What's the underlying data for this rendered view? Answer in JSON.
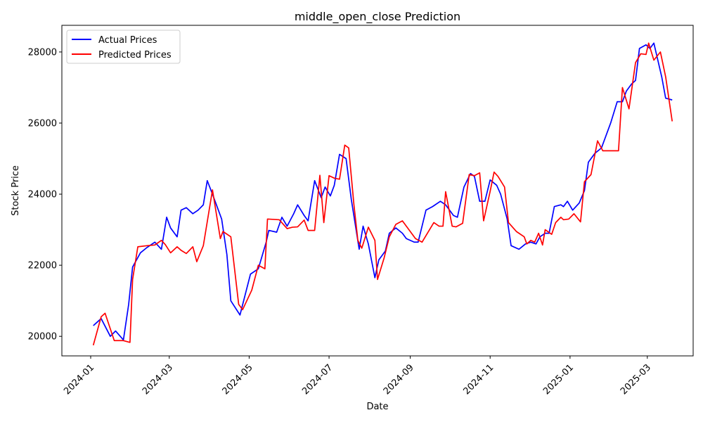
{
  "chart_data": {
    "type": "line",
    "title": "middle_open_close Prediction",
    "xlabel": "Date",
    "ylabel": "Stock Price",
    "xlim": [
      "2023-12-10",
      "2025-04-05"
    ],
    "ylim": [
      19450,
      28750
    ],
    "x_ticks": [
      {
        "date": "2024-01-01",
        "label": "2024-01"
      },
      {
        "date": "2024-03-01",
        "label": "2024-03"
      },
      {
        "date": "2024-05-01",
        "label": "2024-05"
      },
      {
        "date": "2024-07-01",
        "label": "2024-07"
      },
      {
        "date": "2024-09-01",
        "label": "2024-09"
      },
      {
        "date": "2024-11-01",
        "label": "2024-11"
      },
      {
        "date": "2025-01-01",
        "label": "2025-01"
      },
      {
        "date": "2025-03-01",
        "label": "2025-03"
      }
    ],
    "y_ticks": [
      20000,
      22000,
      24000,
      26000,
      28000
    ],
    "grid": false,
    "legend_position": "top-left",
    "series": [
      {
        "name": "Actual Prices",
        "color": "#0000ff",
        "points": [
          [
            "2024-01-03",
            20300
          ],
          [
            "2024-01-09",
            20500
          ],
          [
            "2024-01-16",
            20000
          ],
          [
            "2024-01-20",
            20150
          ],
          [
            "2024-01-26",
            19900
          ],
          [
            "2024-01-30",
            20900
          ],
          [
            "2024-02-02",
            21950
          ],
          [
            "2024-02-08",
            22350
          ],
          [
            "2024-02-13",
            22500
          ],
          [
            "2024-02-19",
            22650
          ],
          [
            "2024-02-24",
            22450
          ],
          [
            "2024-02-28",
            23350
          ],
          [
            "2024-03-02",
            23050
          ],
          [
            "2024-03-07",
            22800
          ],
          [
            "2024-03-10",
            23550
          ],
          [
            "2024-03-14",
            23620
          ],
          [
            "2024-03-19",
            23450
          ],
          [
            "2024-03-23",
            23550
          ],
          [
            "2024-03-27",
            23700
          ],
          [
            "2024-03-30",
            24380
          ],
          [
            "2024-04-03",
            24000
          ],
          [
            "2024-04-10",
            23300
          ],
          [
            "2024-04-14",
            22300
          ],
          [
            "2024-04-17",
            21000
          ],
          [
            "2024-04-24",
            20600
          ],
          [
            "2024-05-02",
            21750
          ],
          [
            "2024-05-08",
            21900
          ],
          [
            "2024-05-14",
            22650
          ],
          [
            "2024-05-16",
            22980
          ],
          [
            "2024-05-22",
            22930
          ],
          [
            "2024-05-26",
            23350
          ],
          [
            "2024-05-30",
            23100
          ],
          [
            "2024-06-04",
            23450
          ],
          [
            "2024-06-07",
            23700
          ],
          [
            "2024-06-12",
            23400
          ],
          [
            "2024-06-15",
            23250
          ],
          [
            "2024-06-20",
            24380
          ],
          [
            "2024-06-25",
            23900
          ],
          [
            "2024-06-28",
            24200
          ],
          [
            "2024-07-02",
            23950
          ],
          [
            "2024-07-05",
            24250
          ],
          [
            "2024-07-09",
            25120
          ],
          [
            "2024-07-14",
            25000
          ],
          [
            "2024-07-18",
            23850
          ],
          [
            "2024-07-24",
            22450
          ],
          [
            "2024-07-27",
            23100
          ],
          [
            "2024-07-31",
            22600
          ],
          [
            "2024-08-05",
            21650
          ],
          [
            "2024-08-08",
            22150
          ],
          [
            "2024-08-13",
            22400
          ],
          [
            "2024-08-16",
            22900
          ],
          [
            "2024-08-21",
            23050
          ],
          [
            "2024-08-26",
            22900
          ],
          [
            "2024-08-29",
            22750
          ],
          [
            "2024-09-04",
            22650
          ],
          [
            "2024-09-07",
            22650
          ],
          [
            "2024-09-13",
            23550
          ],
          [
            "2024-09-18",
            23650
          ],
          [
            "2024-09-24",
            23800
          ],
          [
            "2024-09-28",
            23700
          ],
          [
            "2024-10-04",
            23400
          ],
          [
            "2024-10-07",
            23350
          ],
          [
            "2024-10-12",
            24200
          ],
          [
            "2024-10-17",
            24580
          ],
          [
            "2024-10-20",
            24500
          ],
          [
            "2024-10-24",
            23800
          ],
          [
            "2024-10-28",
            23800
          ],
          [
            "2024-11-01",
            24400
          ],
          [
            "2024-11-06",
            24250
          ],
          [
            "2024-11-09",
            24000
          ],
          [
            "2024-11-14",
            23300
          ],
          [
            "2024-11-17",
            22550
          ],
          [
            "2024-11-23",
            22450
          ],
          [
            "2024-11-28",
            22600
          ],
          [
            "2024-12-02",
            22650
          ],
          [
            "2024-12-06",
            22600
          ],
          [
            "2024-12-09",
            22800
          ],
          [
            "2024-12-13",
            22900
          ],
          [
            "2024-12-16",
            22900
          ],
          [
            "2024-12-20",
            23650
          ],
          [
            "2024-12-25",
            23700
          ],
          [
            "2024-12-27",
            23650
          ],
          [
            "2024-12-30",
            23800
          ],
          [
            "2025-01-03",
            23550
          ],
          [
            "2025-01-08",
            23750
          ],
          [
            "2025-01-12",
            24100
          ],
          [
            "2025-01-15",
            24900
          ],
          [
            "2025-01-20",
            25150
          ],
          [
            "2025-01-25",
            25300
          ],
          [
            "2025-02-01",
            26000
          ],
          [
            "2025-02-06",
            26600
          ],
          [
            "2025-02-10",
            26600
          ],
          [
            "2025-02-13",
            26900
          ],
          [
            "2025-02-17",
            27100
          ],
          [
            "2025-02-20",
            27200
          ],
          [
            "2025-02-23",
            28100
          ],
          [
            "2025-02-28",
            28200
          ],
          [
            "2025-03-03",
            28100
          ],
          [
            "2025-03-06",
            28250
          ],
          [
            "2025-03-12",
            27300
          ],
          [
            "2025-03-15",
            26700
          ],
          [
            "2025-03-20",
            26650
          ]
        ]
      },
      {
        "name": "Predicted Prices",
        "color": "#ff0000",
        "points": [
          [
            "2024-01-03",
            19750
          ],
          [
            "2024-01-09",
            20550
          ],
          [
            "2024-01-12",
            20650
          ],
          [
            "2024-01-19",
            19880
          ],
          [
            "2024-01-23",
            19880
          ],
          [
            "2024-01-26",
            19880
          ],
          [
            "2024-01-31",
            19830
          ],
          [
            "2024-02-02",
            21600
          ],
          [
            "2024-02-06",
            22520
          ],
          [
            "2024-02-13",
            22550
          ],
          [
            "2024-02-19",
            22570
          ],
          [
            "2024-02-24",
            22700
          ],
          [
            "2024-02-27",
            22580
          ],
          [
            "2024-03-02",
            22350
          ],
          [
            "2024-03-07",
            22520
          ],
          [
            "2024-03-10",
            22420
          ],
          [
            "2024-03-14",
            22330
          ],
          [
            "2024-03-19",
            22520
          ],
          [
            "2024-03-22",
            22100
          ],
          [
            "2024-03-27",
            22550
          ],
          [
            "2024-04-03",
            24120
          ],
          [
            "2024-04-09",
            22750
          ],
          [
            "2024-04-11",
            22950
          ],
          [
            "2024-04-17",
            22800
          ],
          [
            "2024-04-23",
            20900
          ],
          [
            "2024-04-26",
            20750
          ],
          [
            "2024-05-03",
            21300
          ],
          [
            "2024-05-08",
            22000
          ],
          [
            "2024-05-13",
            21900
          ],
          [
            "2024-05-15",
            23300
          ],
          [
            "2024-05-24",
            23280
          ],
          [
            "2024-05-30",
            23030
          ],
          [
            "2024-06-03",
            23070
          ],
          [
            "2024-06-07",
            23080
          ],
          [
            "2024-06-12",
            23270
          ],
          [
            "2024-06-15",
            22980
          ],
          [
            "2024-06-20",
            22980
          ],
          [
            "2024-06-24",
            24530
          ],
          [
            "2024-06-27",
            23200
          ],
          [
            "2024-07-01",
            24520
          ],
          [
            "2024-07-05",
            24450
          ],
          [
            "2024-07-09",
            24420
          ],
          [
            "2024-07-13",
            25380
          ],
          [
            "2024-07-16",
            25300
          ],
          [
            "2024-07-20",
            23700
          ],
          [
            "2024-07-23",
            22700
          ],
          [
            "2024-07-26",
            22480
          ],
          [
            "2024-07-31",
            23070
          ],
          [
            "2024-08-05",
            22700
          ],
          [
            "2024-08-07",
            21600
          ],
          [
            "2024-08-12",
            22200
          ],
          [
            "2024-08-16",
            22800
          ],
          [
            "2024-08-21",
            23150
          ],
          [
            "2024-08-26",
            23250
          ],
          [
            "2024-09-05",
            22750
          ],
          [
            "2024-09-10",
            22650
          ],
          [
            "2024-09-19",
            23200
          ],
          [
            "2024-09-23",
            23100
          ],
          [
            "2024-09-26",
            23100
          ],
          [
            "2024-09-28",
            24070
          ],
          [
            "2024-10-03",
            23100
          ],
          [
            "2024-10-06",
            23080
          ],
          [
            "2024-10-11",
            23180
          ],
          [
            "2024-10-16",
            24550
          ],
          [
            "2024-10-20",
            24520
          ],
          [
            "2024-10-24",
            24600
          ],
          [
            "2024-10-27",
            23250
          ],
          [
            "2024-11-01",
            24080
          ],
          [
            "2024-11-04",
            24620
          ],
          [
            "2024-11-07",
            24500
          ],
          [
            "2024-11-12",
            24200
          ],
          [
            "2024-11-15",
            23200
          ],
          [
            "2024-11-21",
            22950
          ],
          [
            "2024-11-27",
            22800
          ],
          [
            "2024-11-29",
            22600
          ],
          [
            "2024-12-02",
            22700
          ],
          [
            "2024-12-05",
            22650
          ],
          [
            "2024-12-08",
            22900
          ],
          [
            "2024-12-11",
            22570
          ],
          [
            "2024-12-13",
            23000
          ],
          [
            "2024-12-18",
            22870
          ],
          [
            "2024-12-21",
            23200
          ],
          [
            "2024-12-25",
            23350
          ],
          [
            "2024-12-27",
            23280
          ],
          [
            "2024-12-31",
            23300
          ],
          [
            "2025-01-04",
            23450
          ],
          [
            "2025-01-09",
            23220
          ],
          [
            "2025-01-12",
            24350
          ],
          [
            "2025-01-17",
            24550
          ],
          [
            "2025-01-22",
            25500
          ],
          [
            "2025-01-26",
            25220
          ],
          [
            "2025-01-31",
            25220
          ],
          [
            "2025-02-04",
            25220
          ],
          [
            "2025-02-07",
            25220
          ],
          [
            "2025-02-10",
            27000
          ],
          [
            "2025-02-15",
            26400
          ],
          [
            "2025-02-20",
            27700
          ],
          [
            "2025-02-24",
            27950
          ],
          [
            "2025-02-28",
            27930
          ],
          [
            "2025-03-02",
            28250
          ],
          [
            "2025-03-06",
            27770
          ],
          [
            "2025-03-11",
            28000
          ],
          [
            "2025-03-15",
            27300
          ],
          [
            "2025-03-20",
            26050
          ]
        ]
      }
    ]
  }
}
